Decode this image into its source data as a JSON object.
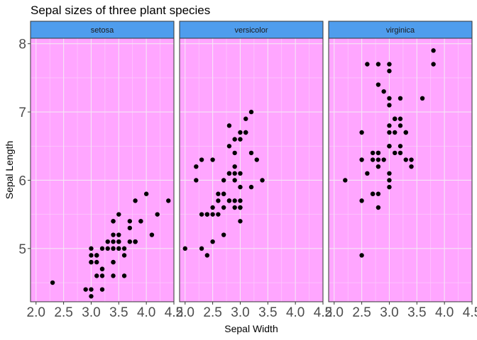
{
  "chart_data": {
    "type": "scatter",
    "title": "Sepal sizes of three plant species",
    "xlabel": "Sepal Width",
    "ylabel": "Sepal Length",
    "xlim": [
      1.9,
      4.5
    ],
    "ylim": [
      4.22,
      8.08
    ],
    "x_ticks": [
      2.0,
      2.5,
      3.0,
      3.5,
      4.0,
      4.5
    ],
    "x_tick_labels": [
      "2.0",
      "2.5",
      "3.0",
      "3.5",
      "4.0",
      "4.5"
    ],
    "y_ticks": [
      5,
      6,
      7,
      8
    ],
    "y_tick_labels": [
      "5",
      "6",
      "7",
      "8"
    ],
    "grid": true,
    "colors": {
      "panel_background": "#ffa6ff",
      "strip_background": "#4f9ded",
      "point": "#000000",
      "grid_major": "#f5e6f5",
      "grid_minor": "#fbd0fb"
    },
    "facets": [
      {
        "name": "setosa",
        "points": [
          [
            3.5,
            5.1
          ],
          [
            3.0,
            4.9
          ],
          [
            3.2,
            4.7
          ],
          [
            3.1,
            4.6
          ],
          [
            3.6,
            5.0
          ],
          [
            3.9,
            5.4
          ],
          [
            3.4,
            4.6
          ],
          [
            3.4,
            5.0
          ],
          [
            2.9,
            4.4
          ],
          [
            3.1,
            4.9
          ],
          [
            3.7,
            5.4
          ],
          [
            3.4,
            4.8
          ],
          [
            3.0,
            4.8
          ],
          [
            3.0,
            4.3
          ],
          [
            4.0,
            5.8
          ],
          [
            4.4,
            5.7
          ],
          [
            3.9,
            5.4
          ],
          [
            3.5,
            5.1
          ],
          [
            3.8,
            5.7
          ],
          [
            3.8,
            5.1
          ],
          [
            3.4,
            5.4
          ],
          [
            3.7,
            5.1
          ],
          [
            3.6,
            4.6
          ],
          [
            3.3,
            5.1
          ],
          [
            3.4,
            4.8
          ],
          [
            3.0,
            5.0
          ],
          [
            3.4,
            5.0
          ],
          [
            3.5,
            5.2
          ],
          [
            3.4,
            5.2
          ],
          [
            3.2,
            4.7
          ],
          [
            3.1,
            4.8
          ],
          [
            3.4,
            5.4
          ],
          [
            4.1,
            5.2
          ],
          [
            4.2,
            5.5
          ],
          [
            3.1,
            4.9
          ],
          [
            3.2,
            5.0
          ],
          [
            3.5,
            5.5
          ],
          [
            3.6,
            4.9
          ],
          [
            3.0,
            4.4
          ],
          [
            3.4,
            5.1
          ],
          [
            3.5,
            5.0
          ],
          [
            2.3,
            4.5
          ],
          [
            3.2,
            4.4
          ],
          [
            3.5,
            5.0
          ],
          [
            3.8,
            5.1
          ],
          [
            3.0,
            4.8
          ],
          [
            3.8,
            5.1
          ],
          [
            3.2,
            4.6
          ],
          [
            3.7,
            5.3
          ],
          [
            3.3,
            5.0
          ]
        ]
      },
      {
        "name": "versicolor",
        "points": [
          [
            3.2,
            7.0
          ],
          [
            3.2,
            6.4
          ],
          [
            3.1,
            6.9
          ],
          [
            2.3,
            5.5
          ],
          [
            2.8,
            6.5
          ],
          [
            2.8,
            5.7
          ],
          [
            3.3,
            6.3
          ],
          [
            2.4,
            4.9
          ],
          [
            2.9,
            6.6
          ],
          [
            2.7,
            5.2
          ],
          [
            2.0,
            5.0
          ],
          [
            3.0,
            5.9
          ],
          [
            2.2,
            6.0
          ],
          [
            2.9,
            6.1
          ],
          [
            2.9,
            5.6
          ],
          [
            3.1,
            6.7
          ],
          [
            3.0,
            5.6
          ],
          [
            2.7,
            5.8
          ],
          [
            2.2,
            6.2
          ],
          [
            2.5,
            5.6
          ],
          [
            3.2,
            5.9
          ],
          [
            2.8,
            6.1
          ],
          [
            2.5,
            6.3
          ],
          [
            2.8,
            6.1
          ],
          [
            2.9,
            6.4
          ],
          [
            3.0,
            6.6
          ],
          [
            2.8,
            6.8
          ],
          [
            3.0,
            6.7
          ],
          [
            2.9,
            6.0
          ],
          [
            2.6,
            5.7
          ],
          [
            2.4,
            5.5
          ],
          [
            2.4,
            5.5
          ],
          [
            2.7,
            5.8
          ],
          [
            2.7,
            6.0
          ],
          [
            3.0,
            5.4
          ],
          [
            3.4,
            6.0
          ],
          [
            3.1,
            6.7
          ],
          [
            2.3,
            6.3
          ],
          [
            3.0,
            5.6
          ],
          [
            2.5,
            5.5
          ],
          [
            2.6,
            5.5
          ],
          [
            3.0,
            6.1
          ],
          [
            2.6,
            5.8
          ],
          [
            2.3,
            5.0
          ],
          [
            2.7,
            5.6
          ],
          [
            3.0,
            5.7
          ],
          [
            2.9,
            5.7
          ],
          [
            2.9,
            6.2
          ],
          [
            2.5,
            5.1
          ],
          [
            2.8,
            5.7
          ]
        ]
      },
      {
        "name": "virginica",
        "points": [
          [
            3.3,
            6.3
          ],
          [
            2.7,
            5.8
          ],
          [
            3.0,
            7.1
          ],
          [
            2.9,
            6.3
          ],
          [
            3.0,
            6.5
          ],
          [
            3.0,
            7.6
          ],
          [
            2.5,
            4.9
          ],
          [
            2.9,
            7.3
          ],
          [
            2.5,
            6.7
          ],
          [
            3.6,
            7.2
          ],
          [
            3.2,
            6.5
          ],
          [
            2.7,
            6.4
          ],
          [
            3.0,
            6.8
          ],
          [
            2.5,
            5.7
          ],
          [
            2.8,
            5.8
          ],
          [
            3.2,
            6.4
          ],
          [
            3.0,
            6.5
          ],
          [
            3.8,
            7.7
          ],
          [
            2.6,
            7.7
          ],
          [
            2.2,
            6.0
          ],
          [
            3.2,
            6.9
          ],
          [
            2.8,
            5.6
          ],
          [
            2.8,
            7.7
          ],
          [
            2.7,
            6.3
          ],
          [
            3.3,
            6.7
          ],
          [
            3.2,
            7.2
          ],
          [
            2.8,
            6.2
          ],
          [
            3.0,
            6.1
          ],
          [
            2.8,
            6.4
          ],
          [
            3.0,
            7.2
          ],
          [
            2.8,
            7.4
          ],
          [
            3.8,
            7.9
          ],
          [
            2.8,
            6.4
          ],
          [
            2.8,
            6.3
          ],
          [
            2.6,
            6.1
          ],
          [
            3.0,
            7.7
          ],
          [
            3.4,
            6.3
          ],
          [
            3.1,
            6.4
          ],
          [
            3.0,
            6.0
          ],
          [
            3.1,
            6.9
          ],
          [
            3.1,
            6.7
          ],
          [
            3.1,
            6.9
          ],
          [
            2.7,
            5.8
          ],
          [
            3.2,
            6.8
          ],
          [
            3.3,
            6.7
          ],
          [
            3.0,
            6.7
          ],
          [
            2.5,
            6.3
          ],
          [
            3.0,
            6.5
          ],
          [
            3.4,
            6.2
          ],
          [
            3.0,
            5.9
          ]
        ]
      }
    ]
  }
}
